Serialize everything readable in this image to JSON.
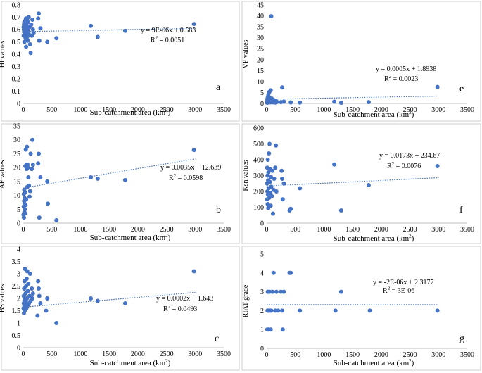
{
  "chart_data": [
    {
      "id": "a",
      "type": "scatter",
      "panel_letter": "a",
      "xlabel": "Sub-catchment area (km",
      "xlabel_sup": "2",
      "xlabel_end": ")",
      "ylabel": "HI values",
      "xlim": [
        0,
        3500
      ],
      "ylim": [
        0,
        0.8
      ],
      "xticks": [
        "0",
        "500",
        "1000",
        "1500",
        "2000",
        "2500",
        "3000",
        "3500"
      ],
      "yticks": [
        "0",
        "0.1",
        "0.2",
        "0.3",
        "0.4",
        "0.5",
        "0.6",
        "0.7",
        "0.8"
      ],
      "equation": "y = 9E-06x + 0.583",
      "r2_prefix": "R",
      "r2_sup": "2",
      "r2_suffix": " = 0.0051",
      "trend": {
        "slope": 9e-06,
        "intercept": 0.583,
        "x_start": 0,
        "x_end": 3000
      },
      "points": [
        [
          5,
          0.62
        ],
        [
          8,
          0.55
        ],
        [
          10,
          0.6
        ],
        [
          12,
          0.64
        ],
        [
          15,
          0.58
        ],
        [
          18,
          0.66
        ],
        [
          20,
          0.5
        ],
        [
          22,
          0.63
        ],
        [
          25,
          0.57
        ],
        [
          28,
          0.61
        ],
        [
          30,
          0.67
        ],
        [
          35,
          0.59
        ],
        [
          38,
          0.65
        ],
        [
          40,
          0.53
        ],
        [
          45,
          0.62
        ],
        [
          48,
          0.69
        ],
        [
          50,
          0.46
        ],
        [
          55,
          0.56
        ],
        [
          60,
          0.63
        ],
        [
          65,
          0.68
        ],
        [
          70,
          0.54
        ],
        [
          75,
          0.6
        ],
        [
          80,
          0.51
        ],
        [
          85,
          0.66
        ],
        [
          90,
          0.58
        ],
        [
          95,
          0.7
        ],
        [
          100,
          0.56
        ],
        [
          110,
          0.62
        ],
        [
          120,
          0.48
        ],
        [
          130,
          0.41
        ],
        [
          140,
          0.64
        ],
        [
          150,
          0.55
        ],
        [
          160,
          0.68
        ],
        [
          170,
          0.6
        ],
        [
          180,
          0.57
        ],
        [
          260,
          0.69
        ],
        [
          270,
          0.73
        ],
        [
          280,
          0.51
        ],
        [
          300,
          0.61
        ],
        [
          420,
          0.5
        ],
        [
          580,
          0.53
        ],
        [
          1180,
          0.63
        ],
        [
          1300,
          0.54
        ],
        [
          1780,
          0.59
        ],
        [
          2980,
          0.645
        ]
      ]
    },
    {
      "id": "e",
      "type": "scatter",
      "panel_letter": "e",
      "xlabel": "Sub-catchment area (km",
      "xlabel_sup": "2",
      "xlabel_end": ")",
      "ylabel": "VF values",
      "xlim": [
        0,
        3500
      ],
      "ylim": [
        0,
        45
      ],
      "xticks": [
        "0",
        "500",
        "1000",
        "1500",
        "2000",
        "2500",
        "3000",
        "3500"
      ],
      "yticks": [
        "0",
        "5",
        "10",
        "15",
        "20",
        "25",
        "30",
        "35",
        "40",
        "45"
      ],
      "equation": "y = 0.0005x + 1.8938",
      "r2_prefix": "R",
      "r2_sup": "2",
      "r2_suffix": " = 0.0023",
      "trend": {
        "slope": 0.0005,
        "intercept": 1.8938,
        "x_start": 0,
        "x_end": 3000
      },
      "points": [
        [
          5,
          0.5
        ],
        [
          8,
          1.0
        ],
        [
          10,
          0.3
        ],
        [
          12,
          2.0
        ],
        [
          15,
          0.8
        ],
        [
          18,
          1.5
        ],
        [
          20,
          0.4
        ],
        [
          22,
          3.0
        ],
        [
          25,
          0.6
        ],
        [
          28,
          1.2
        ],
        [
          30,
          4.0
        ],
        [
          35,
          0.9
        ],
        [
          40,
          1.8
        ],
        [
          45,
          5.2
        ],
        [
          50,
          0.7
        ],
        [
          55,
          2.5
        ],
        [
          60,
          1.1
        ],
        [
          65,
          0.5
        ],
        [
          70,
          6.0
        ],
        [
          75,
          1.4
        ],
        [
          80,
          39.8
        ],
        [
          85,
          0.8
        ],
        [
          90,
          2.2
        ],
        [
          100,
          1.0
        ],
        [
          110,
          0.5
        ],
        [
          120,
          1.6
        ],
        [
          130,
          0.9
        ],
        [
          150,
          0.4
        ],
        [
          160,
          1.3
        ],
        [
          180,
          0.7
        ],
        [
          250,
          0.6
        ],
        [
          270,
          7.3
        ],
        [
          300,
          0.8
        ],
        [
          420,
          0.5
        ],
        [
          580,
          0.4
        ],
        [
          1180,
          0.8
        ],
        [
          1300,
          0.3
        ],
        [
          1780,
          0.6
        ],
        [
          2980,
          7.5
        ]
      ]
    },
    {
      "id": "b",
      "type": "scatter",
      "panel_letter": "b",
      "xlabel": "Sub-catchment area (km",
      "xlabel_sup": "2",
      "xlabel_end": ")",
      "ylabel": "AF values",
      "xlim": [
        0,
        3500
      ],
      "ylim": [
        0,
        35
      ],
      "xticks": [
        "0",
        "500",
        "1000",
        "1500",
        "2000",
        "2500",
        "3000",
        "3500"
      ],
      "yticks": [
        "0",
        "5",
        "10",
        "15",
        "20",
        "25",
        "30",
        "35"
      ],
      "equation": "y = 0.0035x + 12.639",
      "r2_prefix": "R",
      "r2_sup": "2",
      "r2_suffix": " = 0.0598",
      "trend": {
        "slope": 0.0035,
        "intercept": 12.639,
        "x_start": 0,
        "x_end": 3000
      },
      "points": [
        [
          5,
          3.0
        ],
        [
          8,
          6.0
        ],
        [
          10,
          10.5
        ],
        [
          12,
          2.0
        ],
        [
          15,
          8.0
        ],
        [
          18,
          12.0
        ],
        [
          20,
          4.0
        ],
        [
          22,
          7.0
        ],
        [
          25,
          9.0
        ],
        [
          28,
          5.0
        ],
        [
          30,
          11.0
        ],
        [
          35,
          3.5
        ],
        [
          38,
          20.5
        ],
        [
          40,
          6.5
        ],
        [
          45,
          26.5
        ],
        [
          50,
          8.5
        ],
        [
          55,
          21.0
        ],
        [
          60,
          19.5
        ],
        [
          65,
          27.5
        ],
        [
          70,
          13.0
        ],
        [
          75,
          21.0
        ],
        [
          80,
          20.0
        ],
        [
          90,
          16.5
        ],
        [
          100,
          13.5
        ],
        [
          110,
          9.5
        ],
        [
          120,
          11.5
        ],
        [
          130,
          25.0
        ],
        [
          150,
          19.5
        ],
        [
          160,
          30.0
        ],
        [
          170,
          21.0
        ],
        [
          260,
          21.5
        ],
        [
          270,
          25.0
        ],
        [
          280,
          2.0
        ],
        [
          300,
          16.5
        ],
        [
          420,
          15.0
        ],
        [
          430,
          7.0
        ],
        [
          580,
          1.0
        ],
        [
          1180,
          16.5
        ],
        [
          1300,
          16.0
        ],
        [
          1780,
          15.5
        ],
        [
          2980,
          26.3
        ]
      ]
    },
    {
      "id": "f",
      "type": "scatter",
      "panel_letter": "f",
      "xlabel": "Sub-catchment area (km",
      "xlabel_sup": "2",
      "xlabel_end": ")",
      "ylabel": "Ksn values",
      "xlim": [
        0,
        3500
      ],
      "ylim": [
        0,
        600
      ],
      "xticks": [
        "0",
        "500",
        "1000",
        "1500",
        "2000",
        "2500",
        "3000",
        "3500"
      ],
      "yticks": [
        "0",
        "100",
        "200",
        "300",
        "400",
        "500",
        "600"
      ],
      "equation": "y = 0.0173x + 234.67",
      "r2_prefix": "R",
      "r2_sup": "2",
      "r2_suffix": " = 0.0076",
      "trend": {
        "slope": 0.0173,
        "intercept": 234.67,
        "x_start": 0,
        "x_end": 3000
      },
      "points": [
        [
          5,
          150
        ],
        [
          8,
          250
        ],
        [
          10,
          350
        ],
        [
          12,
          200
        ],
        [
          15,
          300
        ],
        [
          18,
          120
        ],
        [
          20,
          400
        ],
        [
          22,
          180
        ],
        [
          25,
          270
        ],
        [
          28,
          95
        ],
        [
          30,
          320
        ],
        [
          35,
          220
        ],
        [
          40,
          440
        ],
        [
          45,
          160
        ],
        [
          50,
          500
        ],
        [
          55,
          260
        ],
        [
          60,
          340
        ],
        [
          65,
          190
        ],
        [
          70,
          110
        ],
        [
          75,
          290
        ],
        [
          80,
          230
        ],
        [
          90,
          170
        ],
        [
          100,
          330
        ],
        [
          110,
          60
        ],
        [
          120,
          210
        ],
        [
          130,
          280
        ],
        [
          150,
          350
        ],
        [
          160,
          490
        ],
        [
          170,
          200
        ],
        [
          260,
          330
        ],
        [
          270,
          280
        ],
        [
          280,
          150
        ],
        [
          300,
          250
        ],
        [
          400,
          80
        ],
        [
          420,
          90
        ],
        [
          580,
          220
        ],
        [
          1180,
          370
        ],
        [
          1300,
          80
        ],
        [
          1780,
          240
        ],
        [
          2980,
          360
        ]
      ]
    },
    {
      "id": "c",
      "type": "scatter",
      "panel_letter": "c",
      "xlabel": "Sub-catchment area (km",
      "xlabel_sup": "2",
      "xlabel_end": ")",
      "ylabel": "BS values",
      "xlim": [
        0,
        3500
      ],
      "ylim": [
        0,
        4
      ],
      "xticks": [
        "0",
        "500",
        "1000",
        "1500",
        "2000",
        "2500",
        "3000",
        "3500"
      ],
      "yticks": [
        "0",
        "0.5",
        "1",
        "1.5",
        "2",
        "2.5",
        "3",
        "3.5",
        "4"
      ],
      "equation": "y = 0.0002x + 1.643",
      "r2_prefix": "R",
      "r2_sup": "2",
      "r2_suffix": " = 0.0493",
      "trend": {
        "slope": 0.0002,
        "intercept": 1.643,
        "x_start": 0,
        "x_end": 3000
      },
      "points": [
        [
          5,
          1.6
        ],
        [
          8,
          2.1
        ],
        [
          10,
          1.8
        ],
        [
          12,
          1.4
        ],
        [
          15,
          2.4
        ],
        [
          18,
          1.9
        ],
        [
          20,
          1.7
        ],
        [
          22,
          2.7
        ],
        [
          25,
          1.5
        ],
        [
          28,
          2.0
        ],
        [
          30,
          3.2
        ],
        [
          35,
          1.8
        ],
        [
          40,
          2.2
        ],
        [
          45,
          1.9
        ],
        [
          50,
          2.5
        ],
        [
          55,
          1.6
        ],
        [
          60,
          2.8
        ],
        [
          65,
          2.0
        ],
        [
          70,
          3.1
        ],
        [
          75,
          1.7
        ],
        [
          80,
          2.3
        ],
        [
          90,
          2.6
        ],
        [
          100,
          1.8
        ],
        [
          110,
          2.1
        ],
        [
          120,
          3.0
        ],
        [
          130,
          1.9
        ],
        [
          150,
          2.4
        ],
        [
          160,
          2.0
        ],
        [
          170,
          2.2
        ],
        [
          250,
          1.3
        ],
        [
          260,
          2.7
        ],
        [
          270,
          2.4
        ],
        [
          280,
          2.1
        ],
        [
          300,
          1.8
        ],
        [
          400,
          1.5
        ],
        [
          420,
          2.0
        ],
        [
          580,
          1.0
        ],
        [
          1180,
          2.0
        ],
        [
          1300,
          1.9
        ],
        [
          1780,
          1.8
        ],
        [
          2980,
          3.1
        ]
      ]
    },
    {
      "id": "g",
      "type": "scatter",
      "panel_letter": "g",
      "xlabel": "Sub-catchment area (km",
      "xlabel_sup": "2",
      "xlabel_end": ")",
      "ylabel": "RIAT grade",
      "xlim": [
        0,
        3500
      ],
      "ylim": [
        0,
        5
      ],
      "xticks": [
        "0",
        "500",
        "1000",
        "1500",
        "2000",
        "2500",
        "3000",
        "3500"
      ],
      "yticks": [
        "0",
        "1",
        "2",
        "3",
        "4",
        "5"
      ],
      "equation": "y = -2E-06x + 2.3177",
      "r2_prefix": "R",
      "r2_sup": "2",
      "r2_suffix": " = 3E-06",
      "trend": {
        "slope": -2e-06,
        "intercept": 2.3177,
        "x_start": 0,
        "x_end": 3000
      },
      "points": [
        [
          10,
          1
        ],
        [
          15,
          2
        ],
        [
          20,
          3
        ],
        [
          25,
          2
        ],
        [
          30,
          1
        ],
        [
          40,
          2
        ],
        [
          50,
          3
        ],
        [
          60,
          2
        ],
        [
          70,
          1
        ],
        [
          80,
          2
        ],
        [
          100,
          3
        ],
        [
          120,
          4
        ],
        [
          150,
          2
        ],
        [
          170,
          3
        ],
        [
          200,
          2
        ],
        [
          250,
          3
        ],
        [
          270,
          2
        ],
        [
          280,
          1
        ],
        [
          300,
          3
        ],
        [
          400,
          4
        ],
        [
          420,
          4
        ],
        [
          580,
          2
        ],
        [
          1200,
          2
        ],
        [
          1300,
          3
        ],
        [
          1800,
          2
        ],
        [
          2980,
          2
        ]
      ]
    }
  ]
}
